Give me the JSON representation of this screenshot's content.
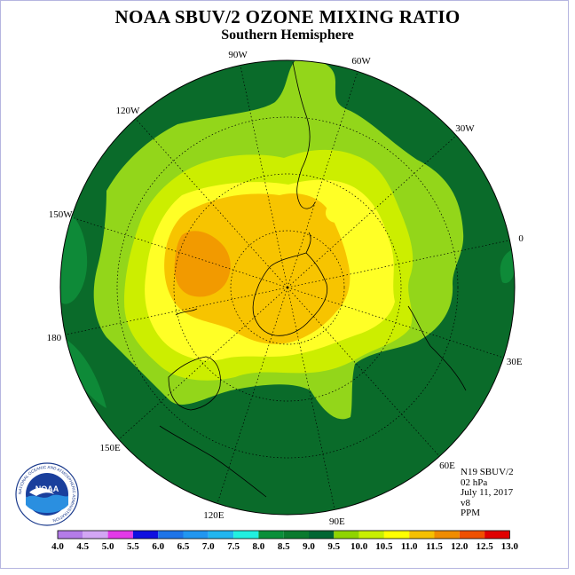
{
  "header": {
    "title": "NOAA SBUV/2 OZONE MIXING RATIO",
    "subtitle": "Southern Hemisphere"
  },
  "longitude_labels": [
    "90W",
    "60W",
    "30W",
    "0",
    "30E",
    "60E",
    "90E",
    "120E",
    "150E",
    "180",
    "150W",
    "120W"
  ],
  "info": {
    "satellite": "N19 SBUV/2",
    "level": "02 hPa",
    "date": "July 11, 2017",
    "version": "v8",
    "units": "PPM"
  },
  "logo": {
    "name": "NOAA",
    "ring_text": "NATIONAL OCEANIC AND ATMOSPHERIC ADMINISTRATION",
    "bottom_text": "U.S. DEPARTMENT OF COMMERCE"
  },
  "colorbar": {
    "ticks": [
      "4.0",
      "4.5",
      "5.0",
      "5.5",
      "6.0",
      "6.5",
      "7.0",
      "7.5",
      "8.0",
      "8.5",
      "9.0",
      "9.5",
      "10.0",
      "10.5",
      "11.0",
      "11.5",
      "12.0",
      "12.5",
      "13.0"
    ],
    "colors": [
      "#b47ce8",
      "#d3a6f4",
      "#e23ae8",
      "#1010e0",
      "#1e74e8",
      "#2196f0",
      "#21b6f0",
      "#21f0e0",
      "#0a8f3a",
      "#0a7a2e",
      "#006633",
      "#8fd400",
      "#c8f000",
      "#ffff00",
      "#f6c000",
      "#f08c00",
      "#f05000",
      "#e00000",
      "#8c4a2a"
    ]
  },
  "map": {
    "colors": {
      "level_9": "#0a6b2a",
      "level_9_5": "#93d61a",
      "level_10": "#ccee00",
      "level_10_5": "#ffff26",
      "level_11": "#f7c400",
      "level_11_5": "#f29a00",
      "level_8_5": "#0e8a38"
    }
  }
}
